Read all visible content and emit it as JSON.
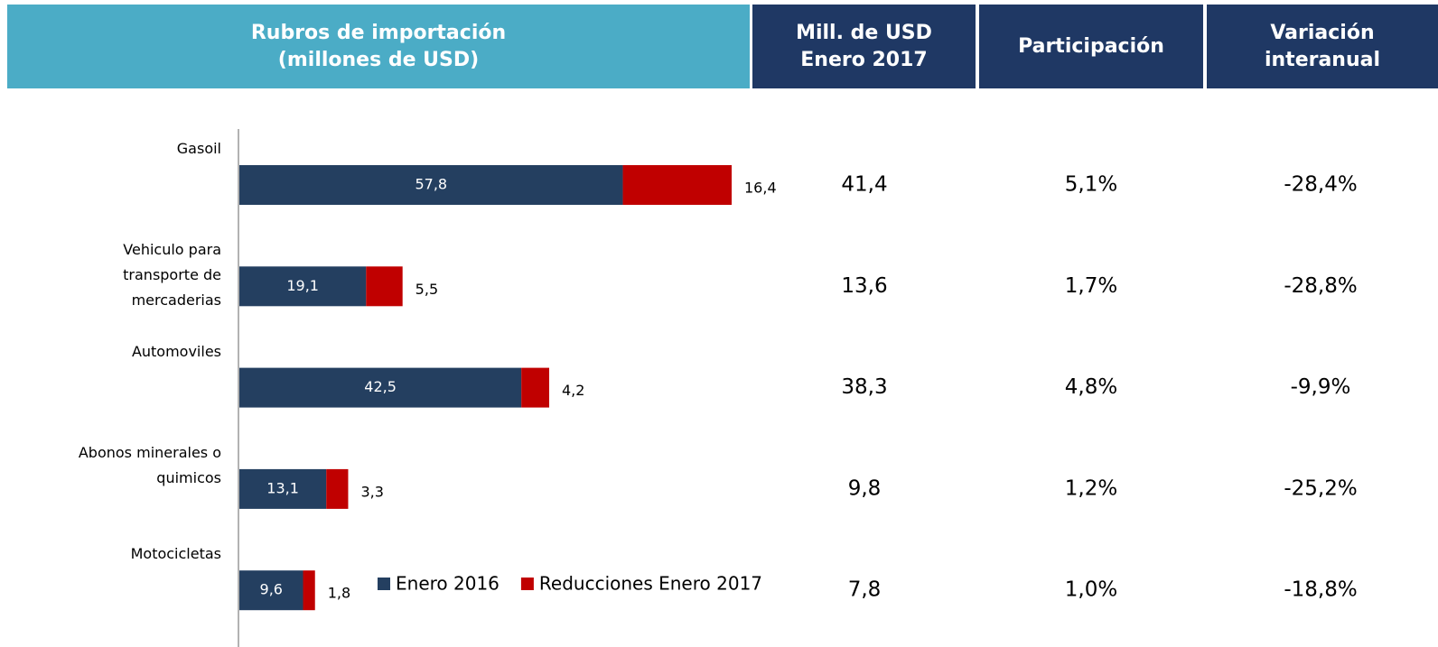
{
  "header": {
    "columns": [
      [
        "Rubros de importación",
        "(millones de USD)"
      ],
      [
        "Mill. de USD",
        "Enero 2017"
      ],
      [
        "Participación"
      ],
      [
        "Variación",
        "interanual"
      ]
    ]
  },
  "chart_data": {
    "type": "bar",
    "orientation": "horizontal",
    "stacked": true,
    "categories": [
      "Gasoil",
      "Vehiculo para transporte de mercaderias",
      "Automoviles",
      "Abonos minerales o quimicos",
      "Motocicletas"
    ],
    "series": [
      {
        "name": "Enero 2016",
        "color": "#243f60",
        "values": [
          57.8,
          19.1,
          42.5,
          13.1,
          9.6
        ],
        "value_labels": [
          "57,8",
          "19,1",
          "42,5",
          "13,1",
          "9,6"
        ]
      },
      {
        "name": "Reducciones Enero 2017",
        "color": "#c00000",
        "values": [
          16.4,
          5.5,
          4.2,
          3.3,
          1.8
        ],
        "value_labels": [
          "16,4",
          "5,5",
          "4,2",
          "3,3",
          "1,8"
        ]
      }
    ]
  },
  "table": {
    "rows": [
      [
        "41,4",
        "5,1%",
        "-28,4%"
      ],
      [
        "13,6",
        "1,7%",
        "-28,8%"
      ],
      [
        "38,3",
        "4,8%",
        "-9,9%"
      ],
      [
        "9,8",
        "1,2%",
        "-25,2%"
      ],
      [
        "7,8",
        "1,0%",
        "-18,8%"
      ]
    ]
  }
}
